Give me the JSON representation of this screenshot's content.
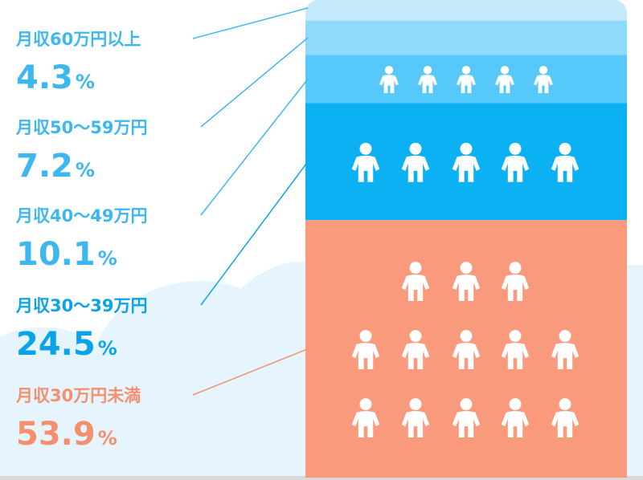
{
  "chart_data": {
    "type": "stacked_bar",
    "unit": "%",
    "series": [
      {
        "name": "月収60万円以上",
        "color": "#c4eafc",
        "values": [
          4.3
        ]
      },
      {
        "name": "月収50～59万円",
        "color": "#8fd9fb",
        "values": [
          7.2
        ]
      },
      {
        "name": "月収40～49万円",
        "color": "#56c8f9",
        "values": [
          10.1
        ]
      },
      {
        "name": "月収30～39万円",
        "color": "#0cb1f4",
        "values": [
          24.5
        ]
      },
      {
        "name": "月収30万円未満",
        "color": "#f99a7c",
        "values": [
          53.9
        ]
      }
    ]
  }
}
